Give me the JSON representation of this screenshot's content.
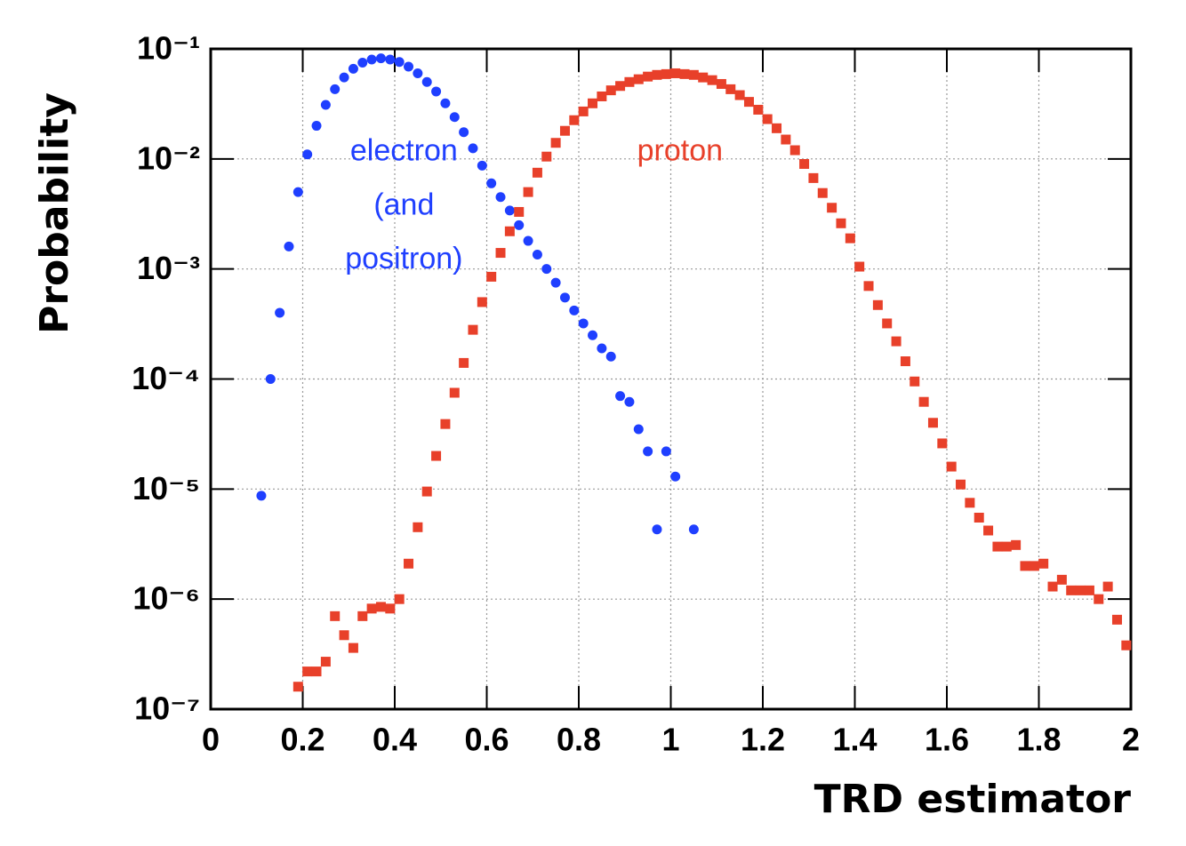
{
  "chart_data": {
    "type": "scatter",
    "xlabel": "TRD estimator",
    "ylabel": "Probability",
    "log_y": true,
    "grid": true,
    "xlim": [
      0,
      2
    ],
    "xticks": [
      0,
      0.2,
      0.4,
      0.6,
      0.8,
      1,
      1.2,
      1.4,
      1.6,
      1.8,
      2
    ],
    "ylim": [
      1e-07,
      0.1
    ],
    "yticks": [
      {
        "value": 1e-07,
        "label": "10⁻⁷"
      },
      {
        "value": 1e-06,
        "label": "10⁻⁶"
      },
      {
        "value": 1e-05,
        "label": "10⁻⁵"
      },
      {
        "value": 0.0001,
        "label": "10⁻⁴"
      },
      {
        "value": 0.001,
        "label": "10⁻³"
      },
      {
        "value": 0.01,
        "label": "10⁻²"
      },
      {
        "value": 0.1,
        "label": "10⁻¹"
      }
    ],
    "series": [
      {
        "color": "#1f3fff",
        "marker": "circle",
        "x": [
          0.11,
          0.13,
          0.15,
          0.17,
          0.19,
          0.21,
          0.23,
          0.25,
          0.27,
          0.29,
          0.31,
          0.33,
          0.35,
          0.37,
          0.39,
          0.41,
          0.43,
          0.45,
          0.47,
          0.49,
          0.51,
          0.53,
          0.55,
          0.57,
          0.59,
          0.61,
          0.63,
          0.65,
          0.67,
          0.69,
          0.71,
          0.73,
          0.75,
          0.77,
          0.79,
          0.81,
          0.83,
          0.85,
          0.87,
          0.89,
          0.91,
          0.93,
          0.95,
          0.97,
          0.99,
          1.01,
          1.05
        ],
        "values": [
          8.7e-06,
          0.0001,
          0.0004,
          0.0016,
          0.005,
          0.011,
          0.02,
          0.031,
          0.043,
          0.055,
          0.066,
          0.075,
          0.08,
          0.082,
          0.08,
          0.076,
          0.069,
          0.06,
          0.05,
          0.041,
          0.032,
          0.024,
          0.0175,
          0.0125,
          0.0087,
          0.006,
          0.0045,
          0.0034,
          0.0025,
          0.0018,
          0.00135,
          0.001,
          0.00075,
          0.00055,
          0.00042,
          0.00032,
          0.00025,
          0.00019,
          0.00016,
          7e-05,
          6.2e-05,
          3.5e-05,
          2.2e-05,
          4.3e-06,
          2.2e-05,
          1.3e-05,
          4.3e-06
        ]
      },
      {
        "color": "#e8402a",
        "marker": "square",
        "x": [
          0.19,
          0.21,
          0.23,
          0.25,
          0.27,
          0.29,
          0.31,
          0.33,
          0.35,
          0.37,
          0.39,
          0.41,
          0.43,
          0.45,
          0.47,
          0.49,
          0.51,
          0.53,
          0.55,
          0.57,
          0.59,
          0.61,
          0.63,
          0.65,
          0.67,
          0.69,
          0.71,
          0.73,
          0.75,
          0.77,
          0.79,
          0.81,
          0.83,
          0.85,
          0.87,
          0.89,
          0.91,
          0.93,
          0.95,
          0.97,
          0.99,
          1.01,
          1.03,
          1.05,
          1.07,
          1.09,
          1.11,
          1.13,
          1.15,
          1.17,
          1.19,
          1.21,
          1.23,
          1.25,
          1.27,
          1.29,
          1.31,
          1.33,
          1.35,
          1.37,
          1.39,
          1.41,
          1.43,
          1.45,
          1.47,
          1.49,
          1.51,
          1.53,
          1.55,
          1.57,
          1.59,
          1.61,
          1.63,
          1.65,
          1.67,
          1.69,
          1.71,
          1.73,
          1.75,
          1.77,
          1.79,
          1.81,
          1.83,
          1.85,
          1.87,
          1.89,
          1.91,
          1.93,
          1.95,
          1.97,
          1.99
        ],
        "values": [
          1.6e-07,
          2.2e-07,
          2.2e-07,
          2.7e-07,
          7e-07,
          4.7e-07,
          3.6e-07,
          7e-07,
          8.2e-07,
          8.5e-07,
          8.2e-07,
          1e-06,
          2.1e-06,
          4.5e-06,
          9.5e-06,
          2e-05,
          3.9e-05,
          7.5e-05,
          0.00014,
          0.00028,
          0.0005,
          0.00085,
          0.0014,
          0.0022,
          0.0033,
          0.005,
          0.0075,
          0.0105,
          0.014,
          0.018,
          0.0225,
          0.027,
          0.032,
          0.037,
          0.042,
          0.046,
          0.05,
          0.053,
          0.056,
          0.058,
          0.059,
          0.06,
          0.059,
          0.058,
          0.055,
          0.052,
          0.048,
          0.043,
          0.038,
          0.033,
          0.028,
          0.023,
          0.019,
          0.015,
          0.012,
          0.009,
          0.0067,
          0.0049,
          0.0036,
          0.0026,
          0.0019,
          0.00105,
          0.0007,
          0.00047,
          0.00032,
          0.00022,
          0.000145,
          9.5e-05,
          6.2e-05,
          4e-05,
          2.6e-05,
          1.6e-05,
          1.1e-05,
          7.5e-06,
          5.5e-06,
          4.2e-06,
          3e-06,
          3e-06,
          3.1e-06,
          2e-06,
          2e-06,
          2.1e-06,
          1.3e-06,
          1.5e-06,
          1.2e-06,
          1.2e-06,
          1.2e-06,
          1e-06,
          1.3e-06,
          6.5e-07,
          3.8e-07
        ]
      }
    ],
    "annotations": [
      {
        "text": "electron",
        "color": "#1f3fff",
        "x": 0.42,
        "y": 0.0115
      },
      {
        "text": "(and",
        "color": "#1f3fff",
        "x": 0.42,
        "y": 0.0037
      },
      {
        "text": "positron)",
        "color": "#1f3fff",
        "x": 0.42,
        "y": 0.0012
      },
      {
        "text": "proton",
        "color": "#e8402a",
        "x": 1.02,
        "y": 0.0115
      }
    ]
  }
}
